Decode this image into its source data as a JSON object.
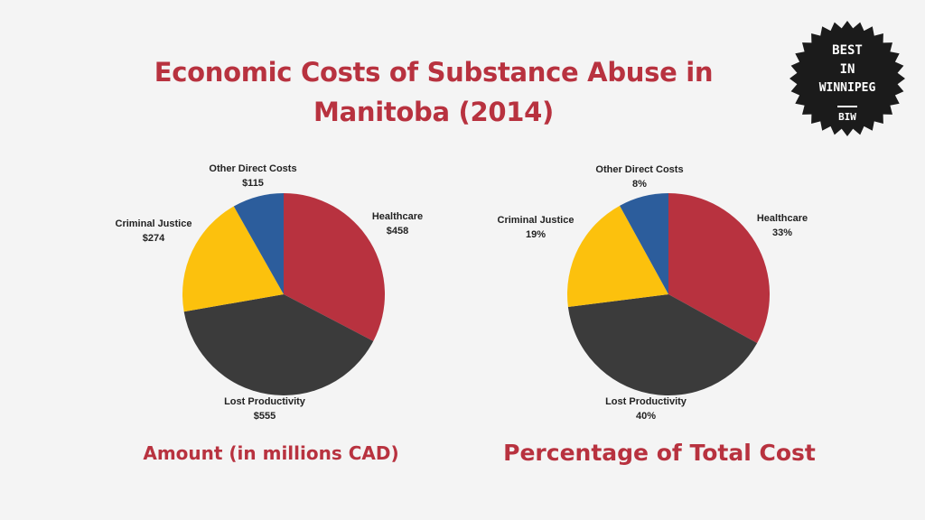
{
  "title": {
    "line1": "Economic Costs of Substance Abuse in",
    "line2": "Manitoba (2014)"
  },
  "badge": {
    "line1": "BEST",
    "line2": "IN",
    "line3": "WINNIPEG",
    "line4": "BIW"
  },
  "colors": {
    "Healthcare": "#b8323f",
    "Lost Productivity": "#3b3b3b",
    "Criminal Justice": "#fcc10d",
    "Other Direct Costs": "#2c5d9c",
    "title": "#b8323f"
  },
  "chart_data": [
    {
      "type": "pie",
      "title": "Amount (in millions CAD)",
      "categories": [
        "Healthcare",
        "Lost Productivity",
        "Criminal Justice",
        "Other Direct Costs"
      ],
      "values": [
        458,
        555,
        274,
        115
      ],
      "labels": [
        "$458",
        "$555",
        "$274",
        "$115"
      ]
    },
    {
      "type": "pie",
      "title": "Percentage of Total Cost",
      "categories": [
        "Healthcare",
        "Lost Productivity",
        "Criminal Justice",
        "Other Direct Costs"
      ],
      "values": [
        33,
        40,
        19,
        8
      ],
      "labels": [
        "33%",
        "40%",
        "19%",
        "8%"
      ]
    }
  ]
}
